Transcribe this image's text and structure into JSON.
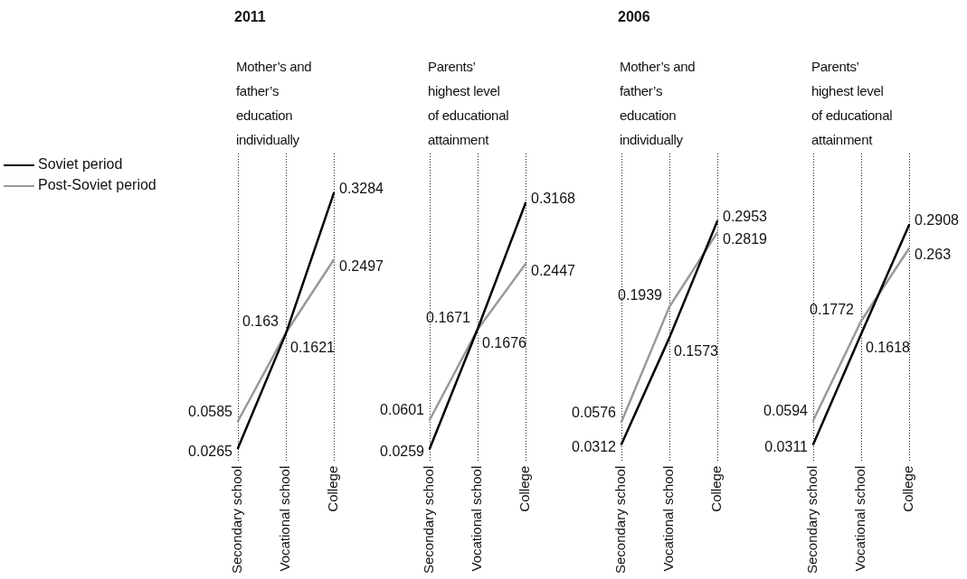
{
  "chart_data": [
    {
      "type": "line",
      "title": "2011",
      "subtitle": "Mother’s and father’s education individually",
      "categories": [
        "Secondary school",
        "Vocational school",
        "College"
      ],
      "series": [
        {
          "name": "Soviet period",
          "color": "#000000",
          "values": [
            0.0265,
            0.1621,
            0.3284
          ]
        },
        {
          "name": "Post-Soviet period",
          "color": "#999999",
          "values": [
            0.0585,
            0.163,
            0.2497
          ]
        }
      ],
      "data_labels": true,
      "grid": "x",
      "legend": "left",
      "marker": "none",
      "line_style": "solid",
      "tick_labels": "x"
    },
    {
      "type": "line",
      "subtitle": "Parents’ highest level of educational attainment",
      "categories": [
        "Secondary school",
        "Vocational school",
        "College"
      ],
      "series": [
        {
          "color": "#000000",
          "values": [
            0.0259,
            0.1676,
            0.3168
          ]
        },
        {
          "color": "#999999",
          "values": [
            0.0601,
            0.1671,
            0.2447
          ]
        }
      ],
      "data_labels": true,
      "grid": "x",
      "marker": "none",
      "line_style": "solid",
      "tick_labels": "x"
    },
    {
      "type": "line",
      "title": "2006",
      "subtitle": "Mother’s and father’s education individually",
      "categories": [
        "Secondary school",
        "Vocational school",
        "College"
      ],
      "series": [
        {
          "color": "#000000",
          "values": [
            0.0312,
            0.1573,
            0.2953
          ]
        },
        {
          "color": "#999999",
          "values": [
            0.0576,
            0.1939,
            0.2819
          ]
        }
      ],
      "data_labels": true,
      "grid": "x",
      "marker": "none",
      "line_style": "solid",
      "tick_labels": "x"
    },
    {
      "type": "line",
      "subtitle": "Parents’ highest level of educational attainment",
      "categories": [
        "Secondary school",
        "Vocational school",
        "College"
      ],
      "series": [
        {
          "color": "#000000",
          "values": [
            0.0311,
            0.1618,
            0.2908
          ]
        },
        {
          "color": "#999999",
          "values": [
            0.0594,
            0.1772,
            0.263
          ]
        }
      ],
      "data_labels": true,
      "grid": "x",
      "marker": "none",
      "line_style": "solid",
      "tick_labels": "x"
    }
  ]
}
